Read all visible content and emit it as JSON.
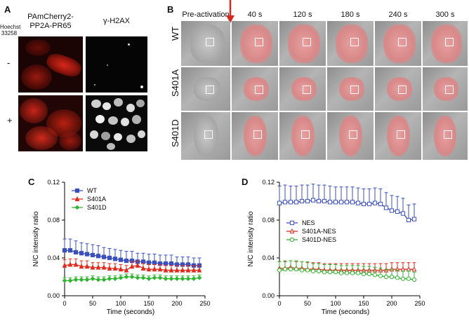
{
  "panelA": {
    "letter": "A",
    "stain_label": [
      "Hoechst",
      "33258"
    ],
    "columns": [
      [
        "PAmCherry2-",
        "PP2A-PR65"
      ],
      [
        "γ-H2AX"
      ]
    ],
    "rows": [
      "-",
      "+"
    ]
  },
  "panelB": {
    "letter": "B",
    "timepoints": [
      "Pre-activation",
      "40 s",
      "120 s",
      "180 s",
      "240 s",
      "300 s"
    ],
    "rows": [
      "WT",
      "S401A",
      "S401D"
    ],
    "arrow_color": "#d42a1e"
  },
  "panelC": {
    "letter": "C",
    "chart_data": {
      "type": "line",
      "xlabel": "Time (seconds)",
      "ylabel": "N/C intensity ratio",
      "xlim": [
        0,
        240
      ],
      "ylim": [
        0,
        0.12
      ],
      "xticks": [
        "0",
        "50",
        "100",
        "150",
        "200",
        "250"
      ],
      "yticks": [
        "0.00",
        "0.04",
        "0.08",
        "0.12"
      ],
      "legend_position": "top-left",
      "x": [
        0,
        10,
        20,
        30,
        40,
        50,
        60,
        70,
        80,
        90,
        100,
        110,
        120,
        130,
        140,
        150,
        160,
        170,
        180,
        190,
        200,
        210,
        220,
        230,
        240
      ],
      "series": [
        {
          "name": "WT",
          "color": "#3a4fc0",
          "marker": "square",
          "values": [
            0.048,
            0.048,
            0.046,
            0.045,
            0.044,
            0.043,
            0.042,
            0.041,
            0.04,
            0.039,
            0.038,
            0.037,
            0.037,
            0.036,
            0.036,
            0.035,
            0.035,
            0.034,
            0.034,
            0.034,
            0.033,
            0.033,
            0.033,
            0.032,
            0.032
          ],
          "errors": [
            0.012,
            0.012,
            0.012,
            0.011,
            0.011,
            0.011,
            0.011,
            0.01,
            0.01,
            0.01,
            0.01,
            0.01,
            0.01,
            0.009,
            0.009,
            0.009,
            0.009,
            0.009,
            0.009,
            0.009,
            0.008,
            0.008,
            0.008,
            0.008,
            0.008
          ]
        },
        {
          "name": "S401A",
          "color": "#e02a1d",
          "marker": "triangle",
          "values": [
            0.032,
            0.033,
            0.033,
            0.031,
            0.031,
            0.03,
            0.03,
            0.03,
            0.029,
            0.029,
            0.028,
            0.027,
            0.031,
            0.032,
            0.029,
            0.028,
            0.028,
            0.028,
            0.027,
            0.027,
            0.027,
            0.027,
            0.027,
            0.027,
            0.027
          ],
          "errors": [
            0.006,
            0.006,
            0.006,
            0.006,
            0.006,
            0.005,
            0.005,
            0.005,
            0.005,
            0.005,
            0.005,
            0.005,
            0.005,
            0.005,
            0.005,
            0.005,
            0.005,
            0.005,
            0.005,
            0.005,
            0.005,
            0.005,
            0.005,
            0.005,
            0.005
          ]
        },
        {
          "name": "S401D",
          "color": "#2fb52f",
          "marker": "diamond",
          "values": [
            0.016,
            0.016,
            0.017,
            0.017,
            0.017,
            0.018,
            0.017,
            0.017,
            0.018,
            0.018,
            0.019,
            0.02,
            0.02,
            0.019,
            0.019,
            0.018,
            0.019,
            0.019,
            0.018,
            0.018,
            0.018,
            0.018,
            0.018,
            0.018,
            0.019
          ],
          "errors": [
            0.003,
            0.003,
            0.003,
            0.003,
            0.003,
            0.003,
            0.003,
            0.003,
            0.003,
            0.003,
            0.003,
            0.003,
            0.003,
            0.003,
            0.003,
            0.003,
            0.003,
            0.003,
            0.003,
            0.003,
            0.003,
            0.003,
            0.003,
            0.003,
            0.003
          ]
        }
      ]
    }
  },
  "panelD": {
    "letter": "D",
    "chart_data": {
      "type": "line",
      "xlabel": "Time (seconds)",
      "ylabel": "N/C intensity ratio",
      "xlim": [
        0,
        240
      ],
      "ylim": [
        0,
        0.12
      ],
      "xticks": [
        "0",
        "50",
        "100",
        "150",
        "200",
        "250"
      ],
      "yticks": [
        "0.00",
        "0.04",
        "0.08",
        "0.12"
      ],
      "legend_position": "center-left",
      "x": [
        0,
        10,
        20,
        30,
        40,
        50,
        60,
        70,
        80,
        90,
        100,
        110,
        120,
        130,
        140,
        150,
        160,
        170,
        180,
        190,
        200,
        210,
        220,
        230,
        240
      ],
      "series": [
        {
          "name": "NES",
          "color": "#3a4fc0",
          "marker": "open-square",
          "values": [
            0.098,
            0.099,
            0.099,
            0.099,
            0.1,
            0.1,
            0.101,
            0.1,
            0.1,
            0.099,
            0.099,
            0.099,
            0.099,
            0.099,
            0.098,
            0.097,
            0.097,
            0.098,
            0.097,
            0.093,
            0.09,
            0.089,
            0.087,
            0.08,
            0.081
          ],
          "errors": [
            0.018,
            0.018,
            0.017,
            0.017,
            0.017,
            0.017,
            0.017,
            0.017,
            0.017,
            0.017,
            0.016,
            0.016,
            0.016,
            0.016,
            0.016,
            0.016,
            0.016,
            0.016,
            0.016,
            0.016,
            0.016,
            0.016,
            0.016,
            0.016,
            0.016
          ]
        },
        {
          "name": "S401A-NES",
          "color": "#e02a1d",
          "marker": "open-triangle",
          "values": [
            0.029,
            0.029,
            0.03,
            0.029,
            0.029,
            0.028,
            0.028,
            0.028,
            0.027,
            0.027,
            0.027,
            0.027,
            0.027,
            0.027,
            0.027,
            0.027,
            0.027,
            0.027,
            0.027,
            0.027,
            0.028,
            0.028,
            0.028,
            0.028,
            0.028
          ],
          "errors": [
            0.007,
            0.007,
            0.007,
            0.007,
            0.007,
            0.007,
            0.007,
            0.007,
            0.007,
            0.007,
            0.007,
            0.007,
            0.007,
            0.007,
            0.007,
            0.007,
            0.007,
            0.007,
            0.007,
            0.007,
            0.007,
            0.007,
            0.007,
            0.007,
            0.007
          ]
        },
        {
          "name": "S401D-NES",
          "color": "#2fb52f",
          "marker": "open-circle",
          "values": [
            0.027,
            0.028,
            0.028,
            0.028,
            0.027,
            0.027,
            0.026,
            0.026,
            0.025,
            0.025,
            0.025,
            0.024,
            0.024,
            0.024,
            0.024,
            0.023,
            0.023,
            0.022,
            0.021,
            0.02,
            0.02,
            0.019,
            0.018,
            0.018,
            0.017
          ],
          "errors": [
            0.009,
            0.009,
            0.009,
            0.009,
            0.009,
            0.009,
            0.008,
            0.008,
            0.008,
            0.008,
            0.008,
            0.008,
            0.008,
            0.008,
            0.008,
            0.008,
            0.008,
            0.008,
            0.008,
            0.008,
            0.008,
            0.008,
            0.008,
            0.008,
            0.008
          ]
        }
      ]
    }
  }
}
